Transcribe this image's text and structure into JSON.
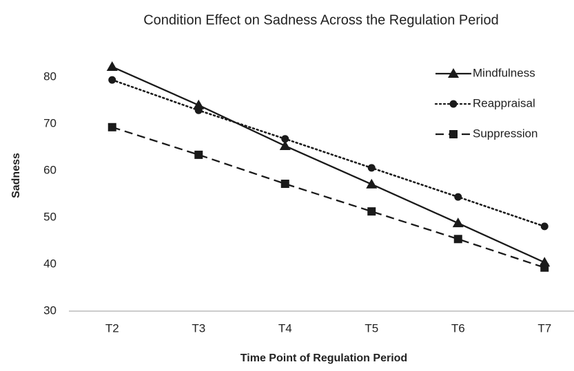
{
  "chart_data": {
    "type": "line",
    "title": "Condition  Effect on Sadness Across the Regulation  Period",
    "x_label": "Time Point of Regulation Period",
    "y_label": "Sadness",
    "categories": [
      "T2",
      "T3",
      "T4",
      "T5",
      "T6",
      "T7"
    ],
    "series": [
      {
        "name": "Mindfulness",
        "color": "#1a1a1a",
        "dash": "solid",
        "marker": "triangle",
        "values": [
          82.2,
          74.0,
          65.3,
          57.1,
          48.8,
          40.4
        ]
      },
      {
        "name": "Reappraisal",
        "color": "#1a1a1a",
        "dash": "dotted",
        "marker": "circle",
        "values": [
          79.4,
          72.9,
          66.8,
          60.6,
          54.4,
          48.1
        ]
      },
      {
        "name": "Suppression",
        "color": "#1a1a1a",
        "dash": "dashed",
        "marker": "square",
        "values": [
          69.3,
          63.4,
          57.2,
          51.3,
          45.4,
          39.3
        ]
      }
    ],
    "ylim": [
      30,
      80
    ],
    "yticks": [
      30,
      40,
      50,
      60,
      70,
      80
    ],
    "grid": false,
    "legend": "upper right"
  }
}
